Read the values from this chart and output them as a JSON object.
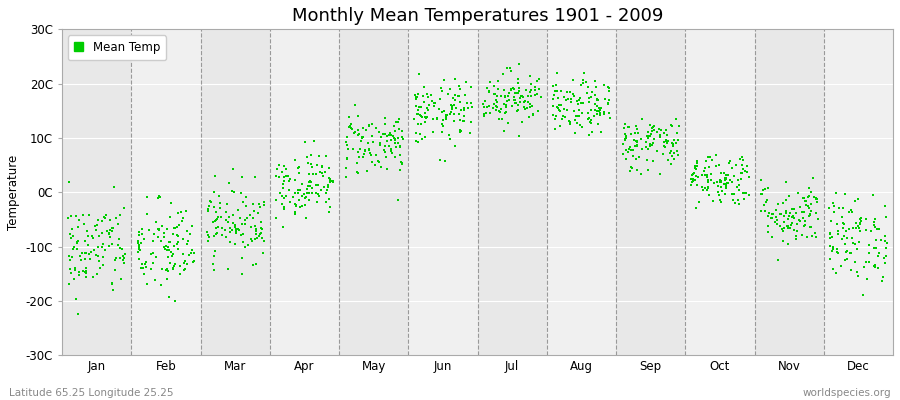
{
  "title": "Monthly Mean Temperatures 1901 - 2009",
  "ylabel": "Temperature",
  "xlabel_labels": [
    "Jan",
    "Feb",
    "Mar",
    "Apr",
    "May",
    "Jun",
    "Jul",
    "Aug",
    "Sep",
    "Oct",
    "Nov",
    "Dec"
  ],
  "yticks": [
    -30,
    -20,
    -10,
    0,
    10,
    20,
    30
  ],
  "ytick_labels": [
    "-30C",
    "-20C",
    "-10C",
    "0C",
    "10C",
    "20C",
    "30C"
  ],
  "ylim": [
    -30,
    30
  ],
  "dot_color": "#00cc00",
  "bg_color": "#ffffff",
  "plot_bg_color": "#f0f0f0",
  "legend_label": "Mean Temp",
  "subtitle_left": "Latitude 65.25 Longitude 25.25",
  "subtitle_right": "worldspecies.org",
  "monthly_means": [
    -10.5,
    -10.5,
    -5.5,
    1.5,
    9.0,
    14.5,
    17.5,
    15.5,
    9.0,
    2.5,
    -4.0,
    -8.5
  ],
  "monthly_stds": [
    4.5,
    4.5,
    3.5,
    3.0,
    3.0,
    3.0,
    2.5,
    2.5,
    2.5,
    2.5,
    3.0,
    4.0
  ],
  "n_years": 109,
  "title_fontsize": 13,
  "axis_fontsize": 8.5,
  "legend_fontsize": 8.5,
  "dot_size": 3
}
